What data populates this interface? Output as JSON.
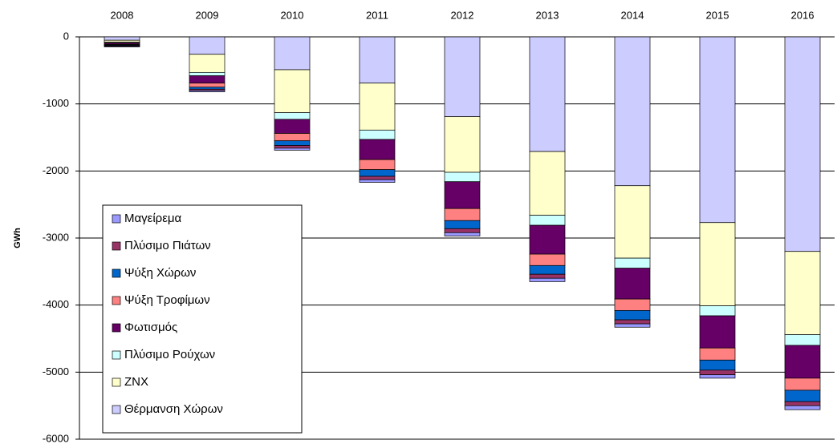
{
  "chart_data": {
    "type": "stacked_bar",
    "y_label": "GWh",
    "categories": [
      "2008",
      "2009",
      "2010",
      "2011",
      "2012",
      "2013",
      "2014",
      "2015",
      "2016"
    ],
    "series": [
      {
        "name": "Μαγείρεμα",
        "color": "#9999ff",
        "values": [
          -10,
          -20,
          -30,
          -40,
          -50,
          -50,
          -50,
          -50,
          -60
        ]
      },
      {
        "name": "Πλύσιμο Πιάτων",
        "color": "#993366",
        "values": [
          -10,
          -20,
          -40,
          -50,
          -60,
          -60,
          -60,
          -70,
          -60
        ]
      },
      {
        "name": "Ψύξη Χώρων",
        "color": "#0066cc",
        "values": [
          -10,
          -30,
          -70,
          -100,
          -120,
          -130,
          -140,
          -150,
          -170
        ]
      },
      {
        "name": "Ψύξη Τροφίμων",
        "color": "#ff8080",
        "values": [
          -10,
          -60,
          -110,
          -150,
          -180,
          -170,
          -170,
          -180,
          -180
        ]
      },
      {
        "name": "Φωτισμός",
        "color": "#660066",
        "values": [
          -20,
          -110,
          -210,
          -300,
          -400,
          -430,
          -460,
          -480,
          -490
        ]
      },
      {
        "name": "Πλύσιμο Ρούχων",
        "color": "#ccffff",
        "values": [
          -10,
          -50,
          -100,
          -140,
          -140,
          -150,
          -150,
          -150,
          -160
        ]
      },
      {
        "name": "ΖΝΧ",
        "color": "#ffffcc",
        "values": [
          -30,
          -270,
          -640,
          -700,
          -830,
          -950,
          -1080,
          -1240,
          -1240
        ]
      },
      {
        "name": "Θέρμανση Χώρων",
        "color": "#ccccff",
        "values": [
          -50,
          -260,
          -490,
          -690,
          -1190,
          -1710,
          -2220,
          -2770,
          -3200
        ]
      }
    ],
    "ylim": [
      -6000,
      0
    ],
    "yticks": [
      0,
      -1000,
      -2000,
      -3000,
      -4000,
      -5000,
      -6000
    ],
    "grid": true
  }
}
